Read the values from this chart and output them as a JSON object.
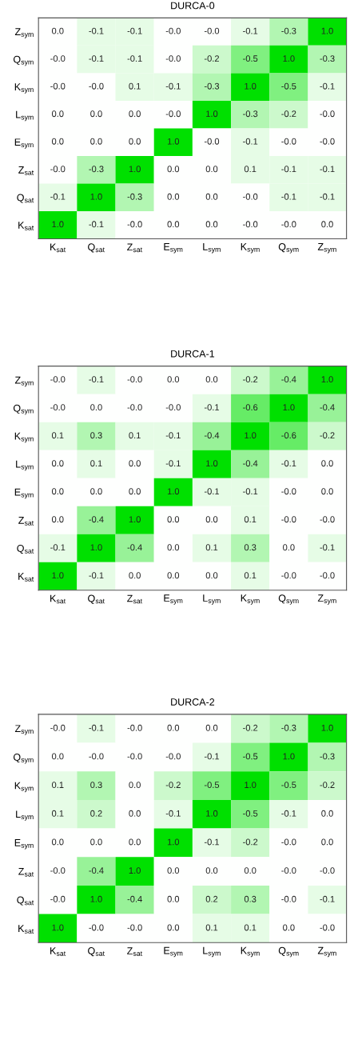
{
  "chart_data": [
    {
      "type": "heatmap",
      "title": "DURCA-0",
      "data_labels": true,
      "categories": [
        "K$_{sat}$",
        "Q$_{sat}$",
        "Z$_{sat}$",
        "E$_{sym}$",
        "L$_{sym}$",
        "K$_{sym}$",
        "Q$_{sym}$",
        "Z$_{sym}$"
      ],
      "y_categories": [
        "Z$_{sym}$",
        "Q$_{sym}$",
        "K$_{sym}$",
        "L$_{sym}$",
        "E$_{sym}$",
        "Z$_{sat}$",
        "Q$_{sat}$",
        "K$_{sat}$"
      ],
      "cells": [
        [
          0.0,
          -0.1,
          -0.1,
          -0.0,
          -0.0,
          -0.1,
          -0.3,
          1.0
        ],
        [
          -0.0,
          -0.1,
          -0.1,
          -0.0,
          -0.2,
          -0.5,
          1.0,
          -0.3
        ],
        [
          -0.0,
          -0.0,
          0.1,
          -0.1,
          -0.3,
          1.0,
          -0.5,
          -0.1
        ],
        [
          0.0,
          0.0,
          0.0,
          -0.0,
          1.0,
          -0.3,
          -0.2,
          -0.0
        ],
        [
          0.0,
          0.0,
          0.0,
          1.0,
          -0.0,
          -0.1,
          -0.0,
          -0.0
        ],
        [
          -0.0,
          -0.3,
          1.0,
          0.0,
          0.0,
          0.1,
          -0.1,
          -0.1
        ],
        [
          -0.1,
          1.0,
          -0.3,
          0.0,
          0.0,
          -0.0,
          -0.1,
          -0.1
        ],
        [
          1.0,
          -0.1,
          -0.0,
          0.0,
          0.0,
          -0.0,
          -0.0,
          0.0
        ]
      ],
      "cell_labels": [
        [
          "0.0",
          "-0.1",
          "-0.1",
          "-0.0",
          "-0.0",
          "-0.1",
          "-0.3",
          "1.0"
        ],
        [
          "-0.0",
          "-0.1",
          "-0.1",
          "-0.0",
          "-0.2",
          "-0.5",
          "1.0",
          "-0.3"
        ],
        [
          "-0.0",
          "-0.0",
          "0.1",
          "-0.1",
          "-0.3",
          "1.0",
          "-0.5",
          "-0.1"
        ],
        [
          "0.0",
          "0.0",
          "0.0",
          "-0.0",
          "1.0",
          "-0.3",
          "-0.2",
          "-0.0"
        ],
        [
          "0.0",
          "0.0",
          "0.0",
          "1.0",
          "-0.0",
          "-0.1",
          "-0.0",
          "-0.0"
        ],
        [
          "-0.0",
          "-0.3",
          "1.0",
          "0.0",
          "0.0",
          "0.1",
          "-0.1",
          "-0.1"
        ],
        [
          "-0.1",
          "1.0",
          "-0.3",
          "0.0",
          "0.0",
          "-0.0",
          "-0.1",
          "-0.1"
        ],
        [
          "1.0",
          "-0.1",
          "-0.0",
          "0.0",
          "0.0",
          "-0.0",
          "-0.0",
          "0.0"
        ]
      ]
    },
    {
      "type": "heatmap",
      "title": "DURCA-1",
      "data_labels": true,
      "categories": [
        "K$_{sat}$",
        "Q$_{sat}$",
        "Z$_{sat}$",
        "E$_{sym}$",
        "L$_{sym}$",
        "K$_{sym}$",
        "Q$_{sym}$",
        "Z$_{sym}$"
      ],
      "y_categories": [
        "Z$_{sym}$",
        "Q$_{sym}$",
        "K$_{sym}$",
        "L$_{sym}$",
        "E$_{sym}$",
        "Z$_{sat}$",
        "Q$_{sat}$",
        "K$_{sat}$"
      ],
      "cells": [
        [
          -0.0,
          -0.1,
          -0.0,
          0.0,
          0.0,
          -0.2,
          -0.4,
          1.0
        ],
        [
          -0.0,
          0.0,
          -0.0,
          -0.0,
          -0.1,
          -0.6,
          1.0,
          -0.4
        ],
        [
          0.1,
          0.3,
          0.1,
          -0.1,
          -0.4,
          1.0,
          -0.6,
          -0.2
        ],
        [
          0.0,
          0.1,
          0.0,
          -0.1,
          1.0,
          -0.4,
          -0.1,
          0.0
        ],
        [
          0.0,
          0.0,
          0.0,
          1.0,
          -0.1,
          -0.1,
          -0.0,
          0.0
        ],
        [
          0.0,
          -0.4,
          1.0,
          0.0,
          0.0,
          0.1,
          -0.0,
          -0.0
        ],
        [
          -0.1,
          1.0,
          -0.4,
          0.0,
          0.1,
          0.3,
          0.0,
          -0.1
        ],
        [
          1.0,
          -0.1,
          0.0,
          0.0,
          0.0,
          0.1,
          -0.0,
          -0.0
        ]
      ],
      "cell_labels": [
        [
          "-0.0",
          "-0.1",
          "-0.0",
          "0.0",
          "0.0",
          "-0.2",
          "-0.4",
          "1.0"
        ],
        [
          "-0.0",
          "0.0",
          "-0.0",
          "-0.0",
          "-0.1",
          "-0.6",
          "1.0",
          "-0.4"
        ],
        [
          "0.1",
          "0.3",
          "0.1",
          "-0.1",
          "-0.4",
          "1.0",
          "-0.6",
          "-0.2"
        ],
        [
          "0.0",
          "0.1",
          "0.0",
          "-0.1",
          "1.0",
          "-0.4",
          "-0.1",
          "0.0"
        ],
        [
          "0.0",
          "0.0",
          "0.0",
          "1.0",
          "-0.1",
          "-0.1",
          "-0.0",
          "0.0"
        ],
        [
          "0.0",
          "-0.4",
          "1.0",
          "0.0",
          "0.0",
          "0.1",
          "-0.0",
          "-0.0"
        ],
        [
          "-0.1",
          "1.0",
          "-0.4",
          "0.0",
          "0.1",
          "0.3",
          "0.0",
          "-0.1"
        ],
        [
          "1.0",
          "-0.1",
          "0.0",
          "0.0",
          "0.0",
          "0.1",
          "-0.0",
          "-0.0"
        ]
      ]
    },
    {
      "type": "heatmap",
      "title": "DURCA-2",
      "data_labels": true,
      "categories": [
        "K$_{sat}$",
        "Q$_{sat}$",
        "Z$_{sat}$",
        "E$_{sym}$",
        "L$_{sym}$",
        "K$_{sym}$",
        "Q$_{sym}$",
        "Z$_{sym}$"
      ],
      "y_categories": [
        "Z$_{sym}$",
        "Q$_{sym}$",
        "K$_{sym}$",
        "L$_{sym}$",
        "E$_{sym}$",
        "Z$_{sat}$",
        "Q$_{sat}$",
        "K$_{sat}$"
      ],
      "cells": [
        [
          -0.0,
          -0.1,
          -0.0,
          0.0,
          0.0,
          -0.2,
          -0.3,
          1.0
        ],
        [
          0.0,
          -0.0,
          -0.0,
          -0.0,
          -0.1,
          -0.5,
          1.0,
          -0.3
        ],
        [
          0.1,
          0.3,
          0.0,
          -0.2,
          -0.5,
          1.0,
          -0.5,
          -0.2
        ],
        [
          0.1,
          0.2,
          0.0,
          -0.1,
          1.0,
          -0.5,
          -0.1,
          0.0
        ],
        [
          0.0,
          0.0,
          0.0,
          1.0,
          -0.1,
          -0.2,
          -0.0,
          0.0
        ],
        [
          -0.0,
          -0.4,
          1.0,
          0.0,
          0.0,
          0.0,
          -0.0,
          -0.0
        ],
        [
          -0.0,
          1.0,
          -0.4,
          0.0,
          0.2,
          0.3,
          -0.0,
          -0.1
        ],
        [
          1.0,
          -0.0,
          -0.0,
          0.0,
          0.1,
          0.1,
          0.0,
          -0.0
        ]
      ],
      "cell_labels": [
        [
          "-0.0",
          "-0.1",
          "-0.0",
          "0.0",
          "0.0",
          "-0.2",
          "-0.3",
          "1.0"
        ],
        [
          "0.0",
          "-0.0",
          "-0.0",
          "-0.0",
          "-0.1",
          "-0.5",
          "1.0",
          "-0.3"
        ],
        [
          "0.1",
          "0.3",
          "0.0",
          "-0.2",
          "-0.5",
          "1.0",
          "-0.5",
          "-0.2"
        ],
        [
          "0.1",
          "0.2",
          "0.0",
          "-0.1",
          "1.0",
          "-0.5",
          "-0.1",
          "0.0"
        ],
        [
          "0.0",
          "0.0",
          "0.0",
          "1.0",
          "-0.1",
          "-0.2",
          "-0.0",
          "0.0"
        ],
        [
          "-0.0",
          "-0.4",
          "1.0",
          "0.0",
          "0.0",
          "0.0",
          "-0.0",
          "-0.0"
        ],
        [
          "-0.0",
          "1.0",
          "-0.4",
          "0.0",
          "0.2",
          "0.3",
          "-0.0",
          "-0.1"
        ],
        [
          "1.0",
          "-0.0",
          "-0.0",
          "0.0",
          "0.1",
          "0.1",
          "0.0",
          "-0.0"
        ]
      ]
    }
  ]
}
